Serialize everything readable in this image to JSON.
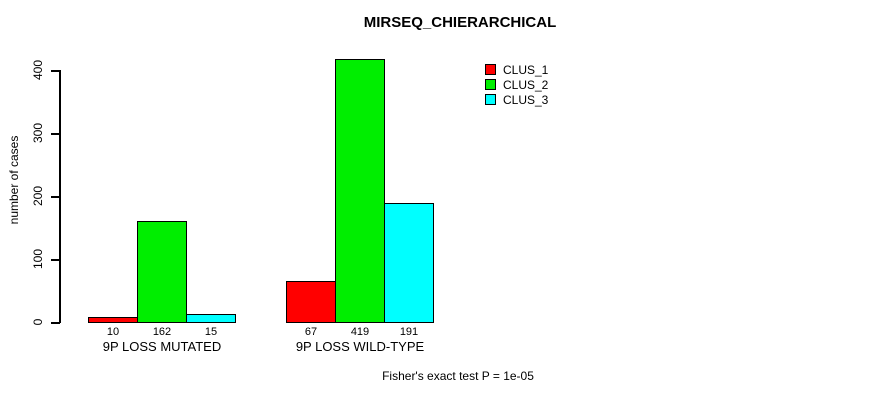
{
  "title": "MIRSEQ_CHIERARCHICAL",
  "caption": "Fisher's exact test P = 1e-05",
  "chart_data": {
    "type": "bar",
    "title": "MIRSEQ_CHIERARCHICAL",
    "xlabel": "",
    "ylabel": "number of cases",
    "categories": [
      "9P LOSS MUTATED",
      "9P LOSS WILD-TYPE"
    ],
    "series": [
      {
        "name": "CLUS_1",
        "color": "#ff0000",
        "values": [
          10,
          67
        ]
      },
      {
        "name": "CLUS_2",
        "color": "#00ee00",
        "values": [
          162,
          419
        ]
      },
      {
        "name": "CLUS_3",
        "color": "#00ffff",
        "values": [
          15,
          191
        ]
      }
    ],
    "yticks": [
      "0",
      "100",
      "200",
      "300",
      "400"
    ],
    "ylim": [
      0,
      420
    ],
    "grid": false,
    "legend_position": "top-right",
    "bar_border_color": "#000000",
    "annotation": "Fisher's exact test P = 1e-05"
  }
}
